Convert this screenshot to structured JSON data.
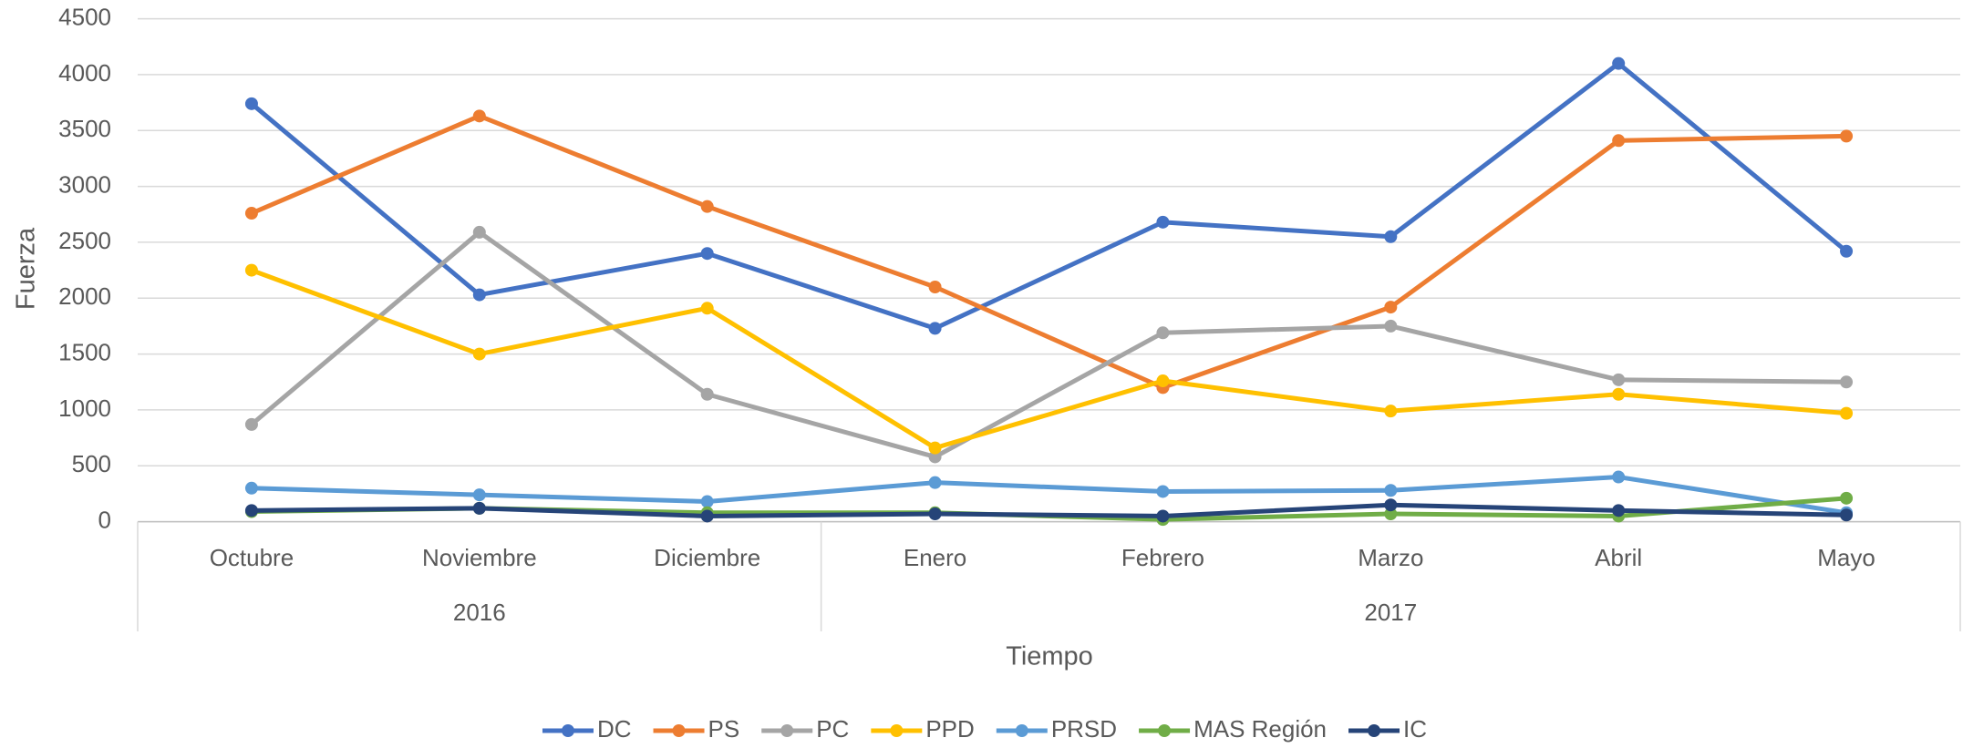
{
  "chart_data": {
    "type": "line",
    "categories": [
      "Octubre",
      "Noviembre",
      "Diciembre",
      "Enero",
      "Febrero",
      "Marzo",
      "Abril",
      "Mayo"
    ],
    "category_groups": [
      {
        "label": "2016",
        "size": 3
      },
      {
        "label": "2017",
        "size": 5
      }
    ],
    "x_label": "Tiempo",
    "y_label": "Fuerza",
    "ylim": [
      0,
      4500
    ],
    "yticks": [
      0,
      500,
      1000,
      1500,
      2000,
      2500,
      3000,
      3500,
      4000,
      4500
    ],
    "grid": true,
    "legend": "bottom",
    "series": [
      {
        "name": "DC",
        "color": "#4472c4",
        "values": [
          3740,
          2030,
          2400,
          1730,
          2680,
          2550,
          4100,
          2420
        ]
      },
      {
        "name": "PS",
        "color": "#ed7d31",
        "values": [
          2760,
          3630,
          2820,
          2100,
          1200,
          1920,
          3410,
          3450
        ]
      },
      {
        "name": "PC",
        "color": "#a5a5a5",
        "values": [
          870,
          2590,
          1140,
          580,
          1690,
          1750,
          1270,
          1250
        ]
      },
      {
        "name": "PPD",
        "color": "#ffc000",
        "values": [
          2250,
          1500,
          1910,
          660,
          1260,
          990,
          1140,
          970
        ]
      },
      {
        "name": "PRSD",
        "color": "#5b9bd5",
        "values": [
          300,
          240,
          180,
          350,
          270,
          280,
          400,
          80
        ]
      },
      {
        "name": "MAS Región",
        "color": "#70ad47",
        "values": [
          90,
          120,
          80,
          80,
          20,
          70,
          50,
          210
        ]
      },
      {
        "name": "IC",
        "color": "#264478",
        "values": [
          100,
          120,
          50,
          70,
          50,
          150,
          100,
          60
        ]
      }
    ]
  }
}
